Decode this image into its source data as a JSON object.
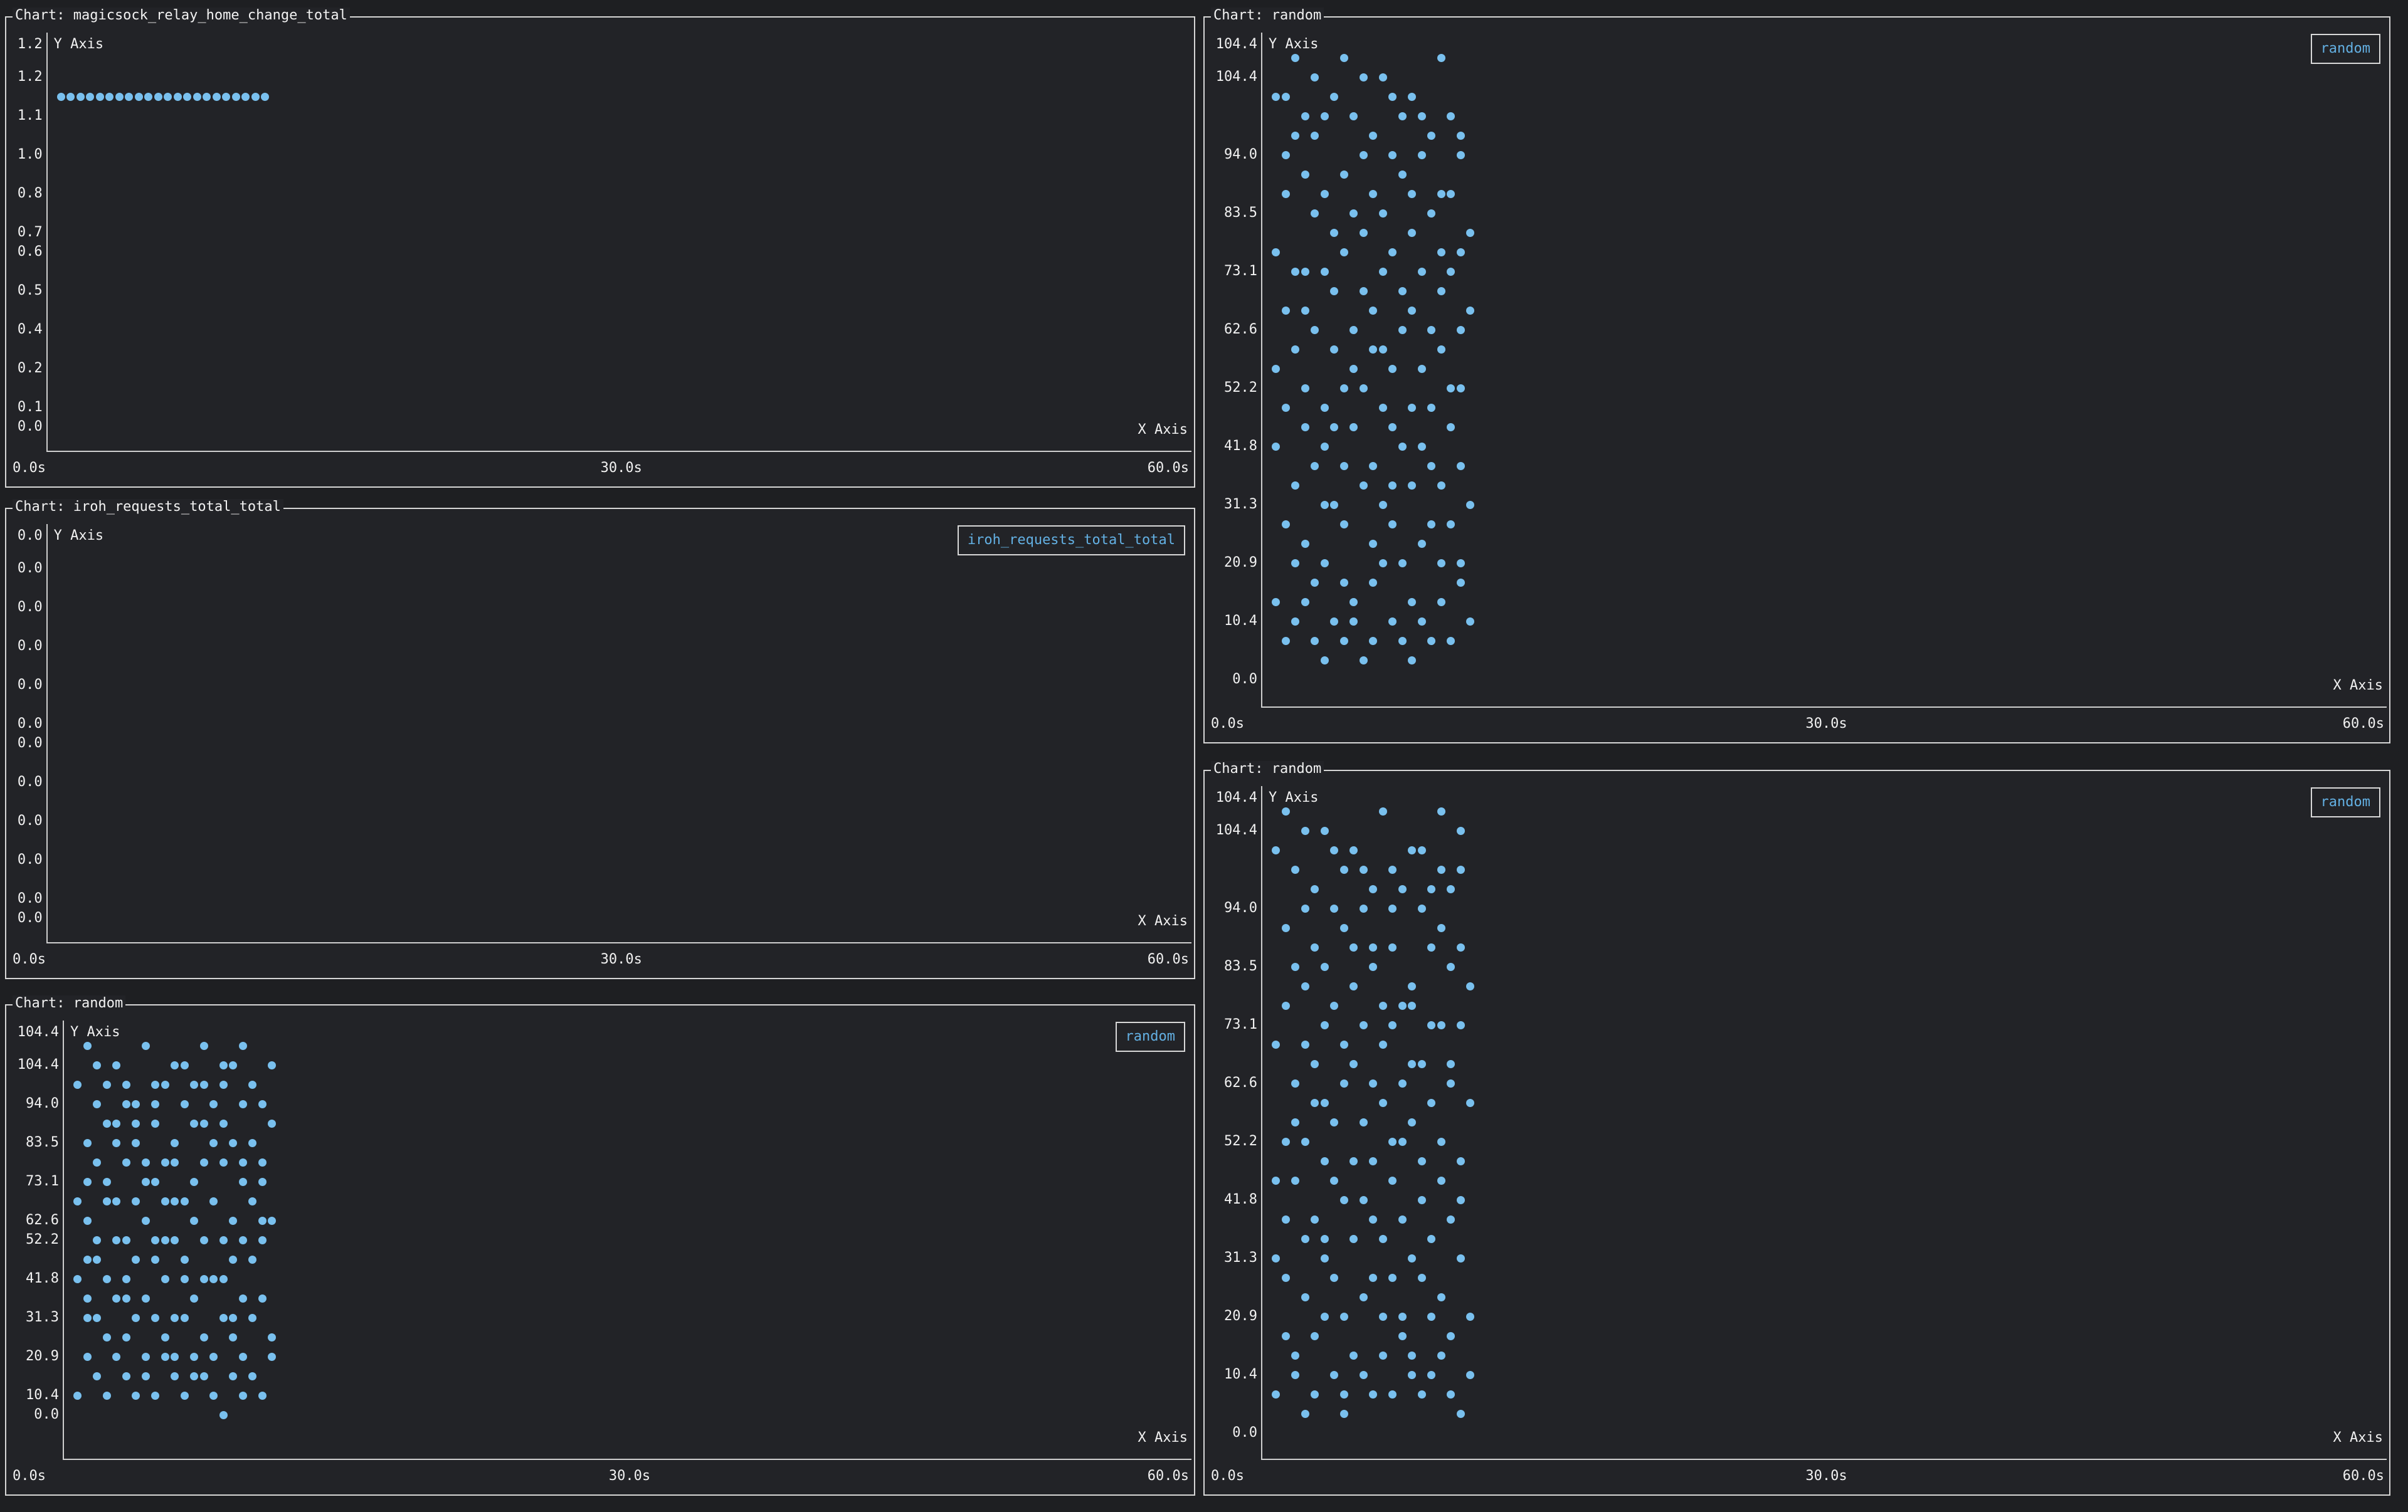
{
  "theme": {
    "page_bg": "#1e1f22",
    "panel_bg": "#222327",
    "border_color": "#d6d6d6",
    "axis_line_color": "#cfcfcf",
    "text_color": "#f2f2f2",
    "legend_text_color": "#63b0e3",
    "dot_color": "#79c0ee"
  },
  "chart_data": [
    {
      "type": "scatter",
      "title": "Chart: magicsock_relay_home_change_total",
      "y_axis_title": "Y Axis",
      "x_axis_title": "X Axis",
      "y_axis_max_label": "1.2",
      "y_tick_labels": [
        "1.2",
        "1.1",
        "1.0",
        "0.8",
        "0.7",
        "0.6",
        "0.5",
        "0.4",
        "0.2",
        "0.1",
        "0.0"
      ],
      "x_tick_labels": [
        "0.0s",
        "30.0s",
        "60.0s"
      ],
      "xlim": [
        0,
        60
      ],
      "ylim": [
        0,
        1.2
      ],
      "x_unit": "s",
      "grid": false,
      "legend": null,
      "series": [
        {
          "name": "magicsock_relay_home_change_total",
          "t0": 0.75,
          "dt": 0.467,
          "values": [
            1.1,
            1.1,
            1.1,
            1.1,
            1.1,
            1.1,
            1.1,
            1.1,
            1.1,
            1.1,
            1.1,
            1.1,
            1.1,
            1.1,
            1.1,
            1.1,
            1.1,
            1.1,
            1.1,
            1.1,
            1.1,
            1.1,
            1.1,
            1.1
          ]
        }
      ]
    },
    {
      "type": "scatter",
      "title": "Chart: iroh_requests_total_total",
      "y_axis_title": "Y Axis",
      "x_axis_title": "X Axis",
      "y_axis_max_label": "0.0",
      "y_tick_labels": [
        "0.0",
        "0.0",
        "0.0",
        "0.0",
        "0.0",
        "0.0",
        "0.0",
        "0.0",
        "0.0",
        "0.0",
        "0.0"
      ],
      "x_tick_labels": [
        "0.0s",
        "30.0s",
        "60.0s"
      ],
      "xlim": [
        0,
        60
      ],
      "ylim": [
        0,
        0
      ],
      "x_unit": "s",
      "grid": false,
      "legend": "iroh_requests_total_total",
      "legend_position": "top-right",
      "series": [
        {
          "name": "iroh_requests_total_total",
          "t0": 0.5,
          "dt": 0.07,
          "values": []
        }
      ]
    },
    {
      "type": "scatter",
      "title": "Chart: random",
      "y_axis_title": "Y Axis",
      "x_axis_title": "X Axis",
      "y_axis_max_label": "104.4",
      "y_tick_labels": [
        "104.4",
        "94.0",
        "83.5",
        "73.1",
        "62.6",
        "52.2",
        "41.8",
        "31.3",
        "20.9",
        "10.4",
        "0.0"
      ],
      "x_tick_labels": [
        "0.0s",
        "30.0s",
        "60.0s"
      ],
      "xlim": [
        0,
        60
      ],
      "ylim": [
        0,
        104.4
      ],
      "x_unit": "s",
      "grid": false,
      "legend": "random",
      "legend_position": "top-right",
      "series": [
        {
          "name": "random",
          "t0": 0.5,
          "dt": 0.07,
          "values": [
            37,
            91,
            8,
            62,
            29,
            68,
            45,
            102,
            19,
            54,
            77,
            34,
            89,
            10,
            43,
            72,
            26,
            97,
            51,
            5,
            65,
            84,
            38,
            93,
            20,
            59,
            4,
            75,
            47,
            99,
            32,
            61,
            14,
            80,
            40,
            87,
            23,
            52,
            96,
            11,
            69,
            35,
            78,
            7,
            58,
            90,
            27,
            46,
            83,
            18,
            64,
            103,
            31,
            55,
            12,
            73,
            42,
            94,
            25,
            67,
            6,
            81,
            50,
            88,
            16,
            60,
            37,
            71,
            21,
            92,
            48,
            9,
            76,
            29,
            63,
            52,
            97,
            14,
            73,
            38,
            88,
            5,
            61,
            99,
            27,
            45,
            81,
            9,
            67,
            33,
            92,
            18,
            56,
            103,
            41,
            70,
            12,
            85,
            49,
            96,
            24,
            63,
            7,
            78,
            36,
            90,
            15,
            58,
            101,
            30,
            47,
            83,
            2,
            69,
            39,
            94,
            21,
            55,
            11,
            76,
            44,
            98,
            28,
            64,
            6,
            86,
            35,
            71,
            17,
            50,
            104,
            25,
            60,
            9,
            79,
            42,
            95,
            13,
            53,
            87,
            31,
            66,
            3,
            74,
            48,
            100,
            22,
            57,
            16,
            82
          ]
        }
      ]
    },
    {
      "type": "scatter",
      "title": "Chart: random",
      "y_axis_title": "Y Axis",
      "x_axis_title": "X Axis",
      "y_axis_max_label": "104.4",
      "y_tick_labels": [
        "104.4",
        "94.0",
        "83.5",
        "73.1",
        "62.6",
        "52.2",
        "41.8",
        "31.3",
        "20.9",
        "10.4",
        "0.0"
      ],
      "x_tick_labels": [
        "0.0s",
        "30.0s",
        "60.0s"
      ],
      "xlim": [
        0,
        60
      ],
      "ylim": [
        0,
        104.4
      ],
      "x_unit": "s",
      "grid": false,
      "legend": "random",
      "legend_position": "top-right",
      "series": [
        {
          "name": "random",
          "t0": 0.5,
          "dt": 0.07,
          "values": [
            52,
            97,
            14,
            73,
            38,
            88,
            5,
            61,
            99,
            27,
            45,
            81,
            9,
            67,
            33,
            92,
            18,
            56,
            103,
            41,
            70,
            12,
            85,
            49,
            96,
            24,
            63,
            7,
            78,
            36,
            90,
            15,
            58,
            101,
            30,
            47,
            83,
            2,
            69,
            39,
            94,
            21,
            55,
            11,
            76,
            44,
            98,
            28,
            64,
            6,
            86,
            35,
            71,
            17,
            50,
            104,
            25,
            60,
            9,
            79,
            42,
            95,
            13,
            53,
            87,
            31,
            66,
            3,
            74,
            48,
            100,
            22,
            57,
            16,
            82,
            37,
            91,
            8,
            62,
            29,
            68,
            45,
            102,
            19,
            54,
            77,
            34,
            89,
            10,
            43,
            72,
            26,
            97,
            51,
            5,
            65,
            84,
            38,
            93,
            20,
            59,
            4,
            75,
            47,
            99,
            32,
            61,
            14,
            80,
            40,
            87,
            23,
            52,
            96,
            11,
            69,
            35,
            78,
            7,
            58,
            90,
            27,
            46,
            83,
            18,
            64,
            103,
            31,
            55,
            12,
            73,
            42,
            94,
            25,
            67,
            6,
            81,
            50,
            88,
            16,
            60,
            37,
            71,
            21,
            92,
            48,
            9,
            76,
            29,
            63
          ]
        }
      ]
    },
    {
      "type": "scatter",
      "title": "Chart: random",
      "y_axis_title": "Y Axis",
      "x_axis_title": "X Axis",
      "y_axis_max_label": "104.4",
      "y_tick_labels": [
        "104.4",
        "94.0",
        "83.5",
        "73.1",
        "62.6",
        "52.2",
        "41.8",
        "31.3",
        "20.9",
        "10.4",
        "0.0"
      ],
      "x_tick_labels": [
        "0.0s",
        "30.0s",
        "60.0s"
      ],
      "xlim": [
        0,
        60
      ],
      "ylim": [
        0,
        104.4
      ],
      "x_unit": "s",
      "grid": false,
      "legend": "random",
      "legend_position": "top-right",
      "series": [
        {
          "name": "random",
          "t0": 0.5,
          "dt": 0.07,
          "values": [
            44,
            98,
            28,
            64,
            6,
            86,
            35,
            71,
            17,
            50,
            104,
            25,
            60,
            9,
            79,
            42,
            95,
            13,
            53,
            87,
            31,
            66,
            3,
            74,
            48,
            100,
            22,
            57,
            16,
            82,
            37,
            91,
            8,
            62,
            29,
            68,
            45,
            102,
            19,
            54,
            77,
            34,
            89,
            10,
            43,
            72,
            26,
            97,
            51,
            5,
            65,
            84,
            38,
            93,
            20,
            59,
            4,
            75,
            47,
            99,
            32,
            61,
            14,
            80,
            40,
            87,
            23,
            52,
            96,
            11,
            69,
            35,
            78,
            7,
            58,
            90,
            27,
            46,
            83,
            18,
            64,
            103,
            31,
            55,
            12,
            73,
            42,
            94,
            25,
            67,
            6,
            81,
            50,
            88,
            16,
            60,
            37,
            71,
            21,
            92,
            48,
            9,
            76,
            29,
            63,
            52,
            97,
            14,
            73,
            38,
            88,
            5,
            61,
            99,
            27,
            45,
            81,
            9,
            67,
            33,
            92,
            18,
            56,
            103,
            41,
            70,
            12,
            85,
            49,
            96,
            24,
            63,
            7,
            78,
            36,
            90,
            15,
            58,
            101,
            30,
            47,
            83,
            2,
            69,
            39,
            94,
            21,
            55,
            11,
            76
          ]
        }
      ]
    }
  ]
}
